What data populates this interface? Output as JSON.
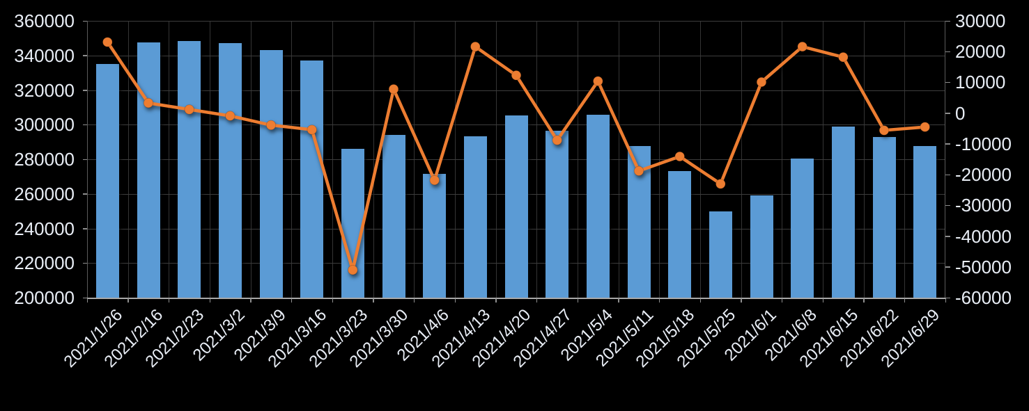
{
  "chart_data": {
    "type": "combo",
    "title": "",
    "legend_position": "none",
    "background": "#000000",
    "categories": [
      "2021/1/26",
      "2021/2/16",
      "2021/2/23",
      "2021/3/2",
      "2021/3/9",
      "2021/3/16",
      "2021/3/23",
      "2021/3/30",
      "2021/4/6",
      "2021/4/13",
      "2021/4/20",
      "2021/4/27",
      "2021/5/4",
      "2021/5/11",
      "2021/5/18",
      "2021/5/25",
      "2021/6/1",
      "2021/6/8",
      "2021/6/15",
      "2021/6/22",
      "2021/6/29"
    ],
    "series": [
      {
        "id": "bar-series",
        "type": "bar",
        "axis": "left",
        "color": "#5B9BD5",
        "values": [
          335200,
          347500,
          348200,
          347200,
          343000,
          336900,
          286100,
          294000,
          271600,
          293100,
          305200,
          296400,
          305900,
          287500,
          273300,
          249800,
          259000,
          280300,
          298900,
          292800,
          287500
        ]
      },
      {
        "id": "line-series",
        "type": "line",
        "axis": "right",
        "color": "#ED7D31",
        "marker": "circle",
        "values": [
          23100,
          3300,
          1200,
          -900,
          -3900,
          -5400,
          -51000,
          7800,
          -21800,
          21600,
          12300,
          -8800,
          10400,
          -18800,
          -14100,
          -23000,
          10100,
          21600,
          18200,
          -5600,
          -4500
        ]
      }
    ],
    "left_axis": {
      "min": 200000,
      "max": 360000,
      "step": 20000,
      "tick_labels": [
        "360000",
        "340000",
        "320000",
        "300000",
        "280000",
        "260000",
        "240000",
        "220000",
        "200000"
      ]
    },
    "right_axis": {
      "min": -60000,
      "max": 30000,
      "step": 10000,
      "tick_labels": [
        "30000",
        "20000",
        "10000",
        "0",
        "-10000",
        "-20000",
        "-30000",
        "-40000",
        "-50000",
        "-60000"
      ]
    },
    "grid": {
      "horizontal": true,
      "vertical": true
    }
  },
  "colors": {
    "bar": "#5B9BD5",
    "line": "#ED7D31",
    "axis_text": "#E9EEF6",
    "gridline_h": "#3d3d3d",
    "gridline_v": "#343434",
    "plot_border": "#5a5a5a",
    "axis_line": "#a8a8a8",
    "tick": "#8f8f8f",
    "background": "#000000"
  }
}
